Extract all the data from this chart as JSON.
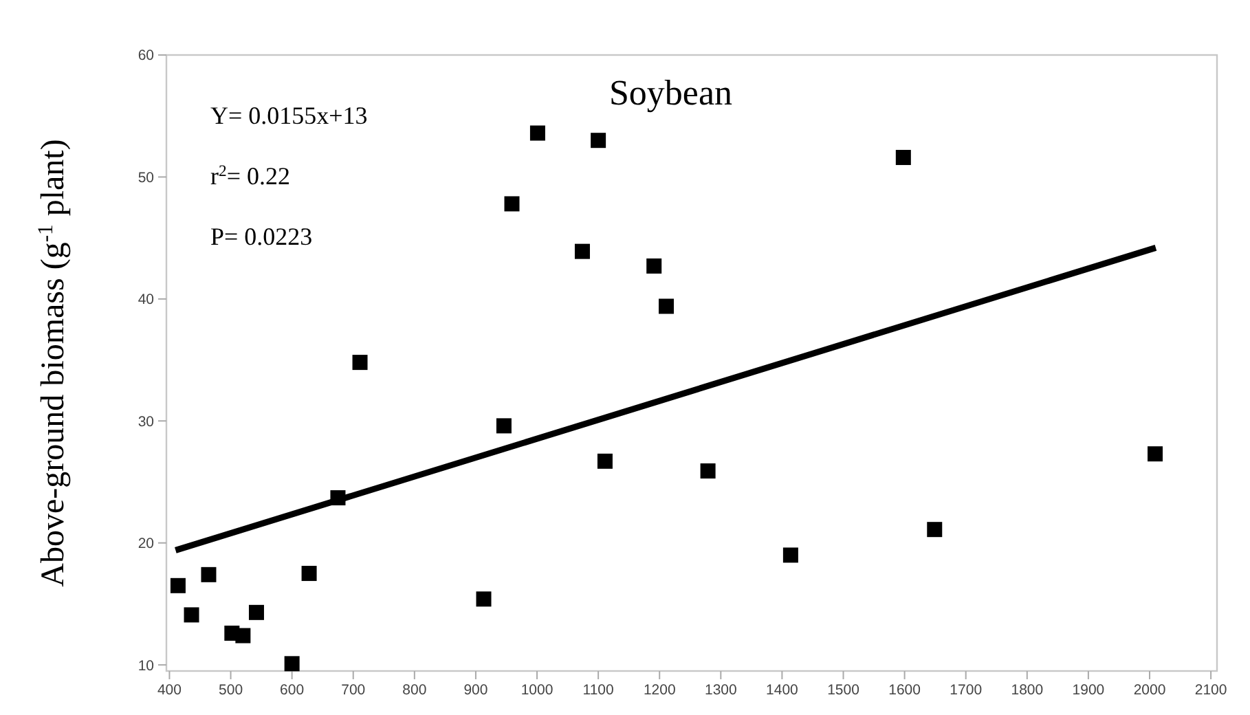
{
  "chart_data": {
    "type": "scatter",
    "title": "Soybean",
    "ylabel": "Above-ground biomass (g$^{-1}$ plant)",
    "annotations": [
      "Y= 0.0155x+13",
      "r$^{2}$= 0.22",
      "P= 0.0223"
    ],
    "xlim": [
      395,
      2110
    ],
    "xticks": [
      400,
      500,
      600,
      700,
      800,
      900,
      1000,
      1100,
      1200,
      1300,
      1400,
      1500,
      1600,
      1700,
      1800,
      1900,
      2000,
      2100
    ],
    "ylim": [
      9.5,
      60
    ],
    "yticks": [
      10,
      20,
      30,
      40,
      50,
      60
    ],
    "grid": false,
    "series": [
      {
        "marker": "square",
        "color": "#000000",
        "x": [
          414,
          436,
          464,
          502,
          520,
          542,
          600,
          628,
          675,
          711,
          913,
          946,
          959,
          1001,
          1074,
          1100,
          1111,
          1191,
          1211,
          1279,
          1414,
          1598,
          1649,
          2009
        ],
        "values": [
          16.5,
          14.1,
          17.4,
          12.6,
          12.4,
          14.3,
          10.1,
          17.5,
          23.7,
          34.8,
          15.4,
          29.6,
          47.8,
          53.6,
          43.9,
          53.0,
          26.7,
          42.7,
          39.4,
          25.9,
          19.0,
          51.6,
          21.1,
          27.3
        ]
      },
      {
        "type": "line",
        "marker": "none",
        "color": "#000000",
        "x": [
          410,
          2010
        ],
        "values": [
          19.4,
          44.2
        ]
      }
    ]
  }
}
